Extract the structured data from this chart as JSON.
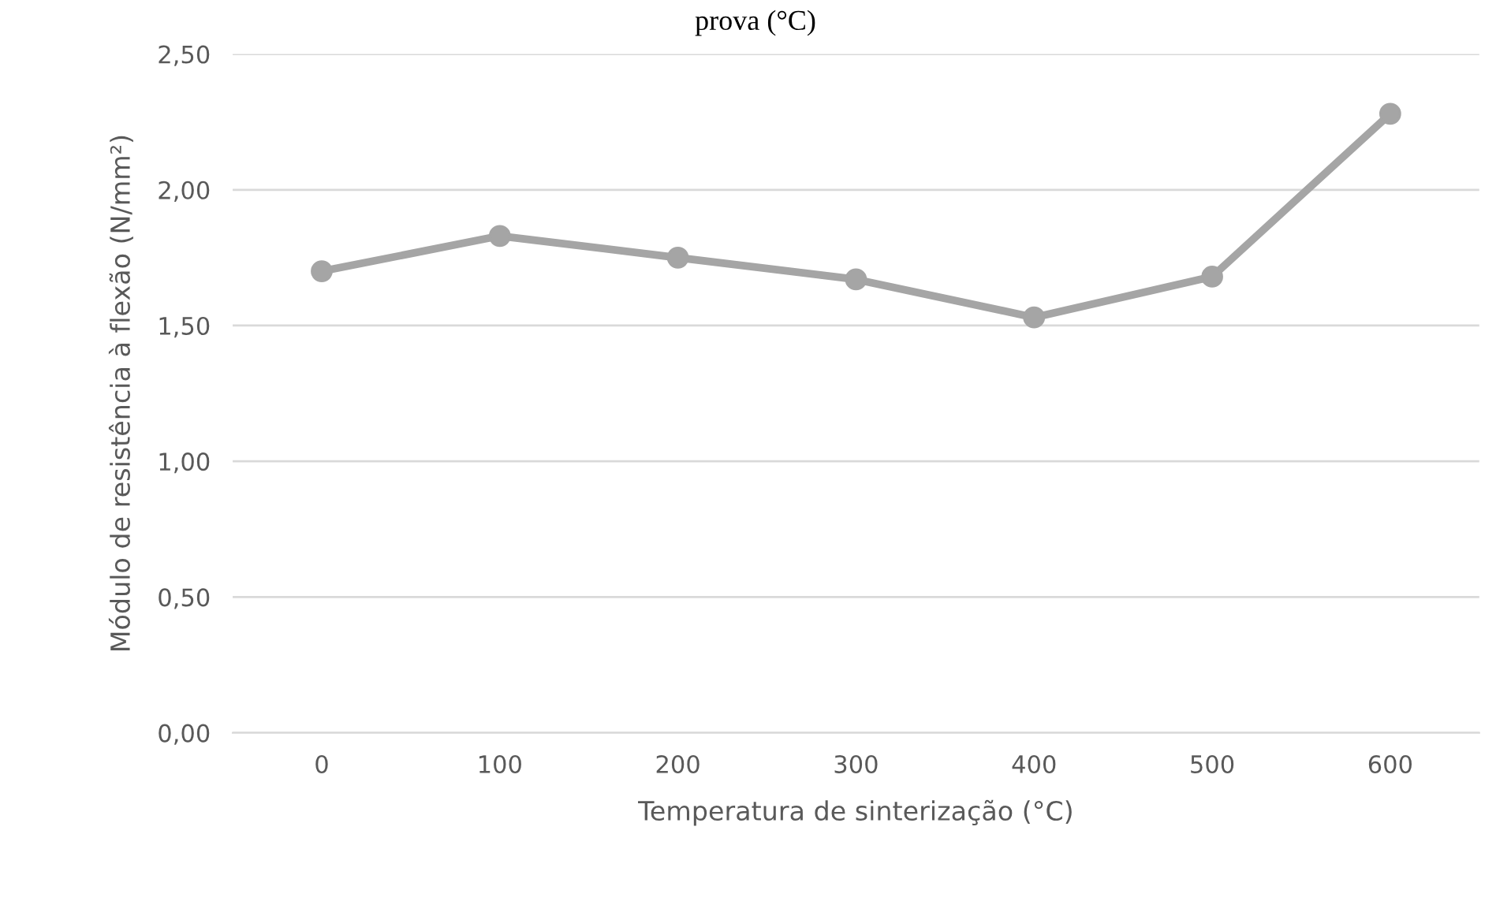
{
  "chart_data": {
    "type": "line",
    "title": "prova (°C)",
    "xlabel": "Temperatura de sinterização (°C)",
    "ylabel": "Módulo de resistência à flexão (N/mm²)",
    "categories": [
      "0",
      "100",
      "200",
      "300",
      "400",
      "500",
      "600"
    ],
    "series": [
      {
        "color": "#a5a5a5",
        "values": [
          1.7,
          1.83,
          1.75,
          1.67,
          1.53,
          1.68,
          2.28
        ]
      }
    ],
    "ylim": [
      0,
      2.5
    ],
    "yticks": [
      {
        "value": 0,
        "label": "0,00"
      },
      {
        "value": 0.5,
        "label": "0,50"
      },
      {
        "value": 1,
        "label": "1,00"
      },
      {
        "value": 1.5,
        "label": "1,50"
      },
      {
        "value": 2,
        "label": "2,00"
      },
      {
        "value": 2.5,
        "label": "2,50"
      }
    ],
    "grid": "y",
    "marker": "circle",
    "line_style": "solid",
    "legend": false
  }
}
